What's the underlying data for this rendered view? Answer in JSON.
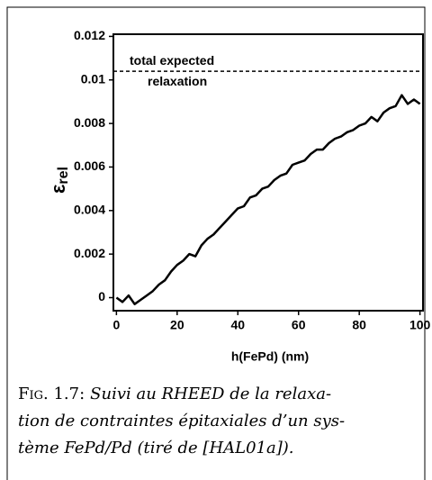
{
  "chart_data": {
    "type": "line",
    "ylabel": {
      "symbol": "ε",
      "subscript": "rel"
    },
    "xlabel": "h(FePd) (nm)",
    "x": [
      0,
      2,
      4,
      6,
      8,
      10,
      12,
      14,
      16,
      18,
      20,
      22,
      24,
      26,
      28,
      30,
      32,
      34,
      36,
      38,
      40,
      42,
      44,
      46,
      48,
      50,
      52,
      54,
      56,
      58,
      60,
      62,
      64,
      66,
      68,
      70,
      72,
      74,
      76,
      78,
      80,
      82,
      84,
      86,
      88,
      90,
      92,
      94,
      96,
      98,
      100
    ],
    "series": [
      {
        "color": "#000000",
        "values": [
          0.0,
          -0.0002,
          0.0001,
          -0.0003,
          -0.0001,
          0.0001,
          0.0003,
          0.0006,
          0.0008,
          0.0012,
          0.0015,
          0.0017,
          0.002,
          0.0019,
          0.0024,
          0.0027,
          0.0029,
          0.0032,
          0.0035,
          0.0038,
          0.0041,
          0.0042,
          0.0046,
          0.0047,
          0.005,
          0.0051,
          0.0054,
          0.0056,
          0.0057,
          0.0061,
          0.0062,
          0.0063,
          0.0066,
          0.0068,
          0.0068,
          0.0071,
          0.0073,
          0.0074,
          0.0076,
          0.0077,
          0.0079,
          0.008,
          0.0083,
          0.0081,
          0.0085,
          0.0087,
          0.0088,
          0.0093,
          0.0089,
          0.0091,
          0.0089
        ]
      }
    ],
    "reference_line": {
      "value": 0.0104,
      "label_above": "total expected",
      "label_below": "relaxation"
    },
    "xlim": [
      -1,
      101
    ],
    "xticks": [
      0,
      20,
      40,
      60,
      80,
      100
    ],
    "ylim": [
      -0.0006,
      0.0121
    ],
    "yticks": [
      0,
      0.002,
      0.004,
      0.006,
      0.008,
      0.01,
      0.012
    ]
  },
  "caption": {
    "label": "Fig. 1.7:",
    "lines": [
      "Suivi au RHEED de la relaxa-",
      "tion de contraintes épitaxiales d’un sys-",
      "tème FePd/Pd (tiré de [HAL01a])."
    ]
  }
}
